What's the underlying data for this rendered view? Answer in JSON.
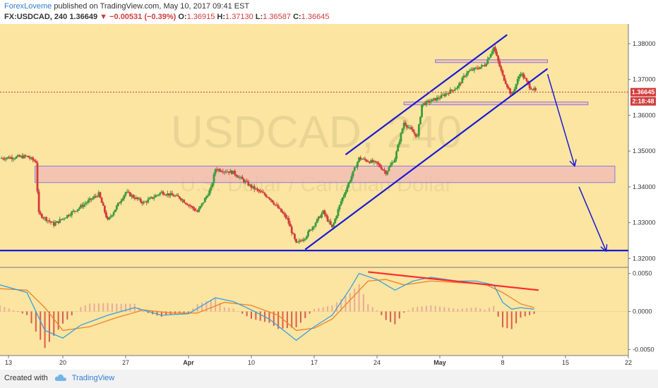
{
  "header": {
    "author": "ForexLoveme",
    "published": "published on TradingView.com, May 10, 2017 09:41 EST",
    "symbol_tf": "FX:USDCAD, 240",
    "last": "1.36649",
    "change_arrow": "▼",
    "change": "−0.00531 (−0.39%)",
    "o_label": "O:",
    "o": "1.36915",
    "h_label": "H:",
    "h": "1.37130",
    "l_label": "L:",
    "l": "1.36587",
    "c_label": "C:",
    "c": "1.36645"
  },
  "watermark": {
    "symbol": "USDCAD, 240",
    "name": "U.S. Dollar / Canadian Dollar"
  },
  "footer": {
    "created_with": "Created with",
    "brand": "TradingView"
  },
  "colors": {
    "background": "#fbe5a1",
    "zone": "#f2b8b8",
    "zone_border": "#8a7ad8",
    "trend": "#1a1ad8",
    "divergence": "#ff2a2a",
    "up": "#3c9c3c",
    "down": "#d23b3b",
    "macd_line": "#3aa0e0",
    "signal_line": "#f0822a",
    "last_price": "#d23b3b"
  },
  "chart_data": [
    {
      "type": "candlestick",
      "symbol": "FX:USDCAD",
      "timeframe": "240",
      "yticks": [
        "1.38000",
        "1.37000",
        "1.36000",
        "1.35000",
        "1.34000",
        "1.33000",
        "1.32000"
      ],
      "ylim": [
        1.3175,
        1.3855
      ],
      "xticks": [
        "13",
        "20",
        "27",
        "Apr",
        "10",
        "17",
        "24",
        "May",
        "8",
        "15",
        "22"
      ],
      "xlim_days": [
        0,
        70
      ],
      "last_price": "1.36645",
      "countdown": "2:18:48",
      "path": [
        {
          "d": 0,
          "p": 1.348
        },
        {
          "d": 3,
          "p": 1.3485
        },
        {
          "d": 4,
          "p": 1.347
        },
        {
          "d": 4.3,
          "p": 1.3325
        },
        {
          "d": 6,
          "p": 1.3295
        },
        {
          "d": 9,
          "p": 1.3345
        },
        {
          "d": 11,
          "p": 1.338
        },
        {
          "d": 12,
          "p": 1.3305
        },
        {
          "d": 14,
          "p": 1.3385
        },
        {
          "d": 16,
          "p": 1.3355
        },
        {
          "d": 18,
          "p": 1.3385
        },
        {
          "d": 20,
          "p": 1.337
        },
        {
          "d": 22,
          "p": 1.333
        },
        {
          "d": 23.5,
          "p": 1.3395
        },
        {
          "d": 24,
          "p": 1.345
        },
        {
          "d": 26,
          "p": 1.344
        },
        {
          "d": 28,
          "p": 1.34
        },
        {
          "d": 30,
          "p": 1.337
        },
        {
          "d": 32,
          "p": 1.331
        },
        {
          "d": 33,
          "p": 1.324
        },
        {
          "d": 34,
          "p": 1.326
        },
        {
          "d": 36,
          "p": 1.333
        },
        {
          "d": 37,
          "p": 1.3285
        },
        {
          "d": 38,
          "p": 1.336
        },
        {
          "d": 40,
          "p": 1.348
        },
        {
          "d": 42,
          "p": 1.3465
        },
        {
          "d": 43,
          "p": 1.344
        },
        {
          "d": 44,
          "p": 1.348
        },
        {
          "d": 45,
          "p": 1.358
        },
        {
          "d": 46.5,
          "p": 1.354
        },
        {
          "d": 47,
          "p": 1.363
        },
        {
          "d": 49,
          "p": 1.365
        },
        {
          "d": 51,
          "p": 1.368
        },
        {
          "d": 52,
          "p": 1.372
        },
        {
          "d": 54,
          "p": 1.374
        },
        {
          "d": 55,
          "p": 1.379
        },
        {
          "d": 56,
          "p": 1.371
        },
        {
          "d": 57,
          "p": 1.3655
        },
        {
          "d": 58,
          "p": 1.372
        },
        {
          "d": 59,
          "p": 1.368
        },
        {
          "d": 59.8,
          "p": 1.3665
        }
      ],
      "zones": [
        {
          "x": [
            3.9,
            68.5
          ],
          "y": [
            1.3412,
            1.3458
          ]
        },
        {
          "x": [
            48.5,
            61
          ],
          "y": [
            1.3749,
            1.3755
          ]
        },
        {
          "x": [
            45,
            65.5
          ],
          "y": [
            1.363,
            1.3637
          ]
        }
      ],
      "lines": [
        {
          "from": [
            34,
            1.3225
          ],
          "to": [
            61,
            1.373
          ]
        },
        {
          "from": [
            38.5,
            1.349
          ],
          "to": [
            56.5,
            1.3825
          ]
        },
        {
          "from": [
            0,
            1.3222
          ],
          "to": [
            70,
            1.3222
          ]
        }
      ],
      "arrows": [
        {
          "from": [
            61,
            1.3715
          ],
          "to": [
            64,
            1.346
          ]
        },
        {
          "from": [
            64.5,
            1.34
          ],
          "to": [
            67.5,
            1.3222
          ]
        }
      ]
    },
    {
      "type": "macd",
      "yticks": [
        "0.0050",
        "0.0000",
        "-0.0050"
      ],
      "ylim": [
        -0.0058,
        0.0058
      ],
      "divergence_line": {
        "from": [
          41,
          0.0052
        ],
        "to": [
          60,
          0.0028
        ]
      },
      "macd": [
        {
          "d": 0,
          "v": 0.0035
        },
        {
          "d": 3,
          "v": 0.0025
        },
        {
          "d": 5,
          "v": -0.0025
        },
        {
          "d": 7,
          "v": -0.0035
        },
        {
          "d": 9,
          "v": -0.0018
        },
        {
          "d": 12,
          "v": -0.0005
        },
        {
          "d": 15,
          "v": 0.0005
        },
        {
          "d": 18,
          "v": -0.0005
        },
        {
          "d": 21,
          "v": -0.0003
        },
        {
          "d": 24,
          "v": 0.0018
        },
        {
          "d": 26,
          "v": 0.0013
        },
        {
          "d": 28,
          "v": 0.0002
        },
        {
          "d": 30,
          "v": -0.001
        },
        {
          "d": 33,
          "v": -0.0038
        },
        {
          "d": 35,
          "v": -0.002
        },
        {
          "d": 37,
          "v": -0.0005
        },
        {
          "d": 39,
          "v": 0.003
        },
        {
          "d": 40,
          "v": 0.005
        },
        {
          "d": 42,
          "v": 0.0042
        },
        {
          "d": 44,
          "v": 0.0028
        },
        {
          "d": 46,
          "v": 0.004
        },
        {
          "d": 48,
          "v": 0.0045
        },
        {
          "d": 51,
          "v": 0.004
        },
        {
          "d": 53,
          "v": 0.004
        },
        {
          "d": 55,
          "v": 0.0035
        },
        {
          "d": 56,
          "v": 0.0012
        },
        {
          "d": 57,
          "v": 0.0003
        },
        {
          "d": 58,
          "v": 0.0005
        },
        {
          "d": 59.5,
          "v": 0.0003
        }
      ],
      "signal": [
        {
          "d": 0,
          "v": 0.003
        },
        {
          "d": 3,
          "v": 0.0028
        },
        {
          "d": 5,
          "v": 0.0005
        },
        {
          "d": 7,
          "v": -0.0025
        },
        {
          "d": 10,
          "v": -0.002
        },
        {
          "d": 13,
          "v": -0.0008
        },
        {
          "d": 16,
          "v": 0.0002
        },
        {
          "d": 19,
          "v": -0.0002
        },
        {
          "d": 22,
          "v": -0.0002
        },
        {
          "d": 25,
          "v": 0.0012
        },
        {
          "d": 28,
          "v": 0.0008
        },
        {
          "d": 31,
          "v": -0.0005
        },
        {
          "d": 33,
          "v": -0.0025
        },
        {
          "d": 35,
          "v": -0.0022
        },
        {
          "d": 37,
          "v": -0.001
        },
        {
          "d": 39,
          "v": 0.0015
        },
        {
          "d": 41,
          "v": 0.004
        },
        {
          "d": 43,
          "v": 0.0042
        },
        {
          "d": 45,
          "v": 0.0035
        },
        {
          "d": 48,
          "v": 0.004
        },
        {
          "d": 51,
          "v": 0.0038
        },
        {
          "d": 54,
          "v": 0.0036
        },
        {
          "d": 56,
          "v": 0.0025
        },
        {
          "d": 58,
          "v": 0.001
        },
        {
          "d": 59.5,
          "v": 0.0005
        }
      ]
    }
  ]
}
